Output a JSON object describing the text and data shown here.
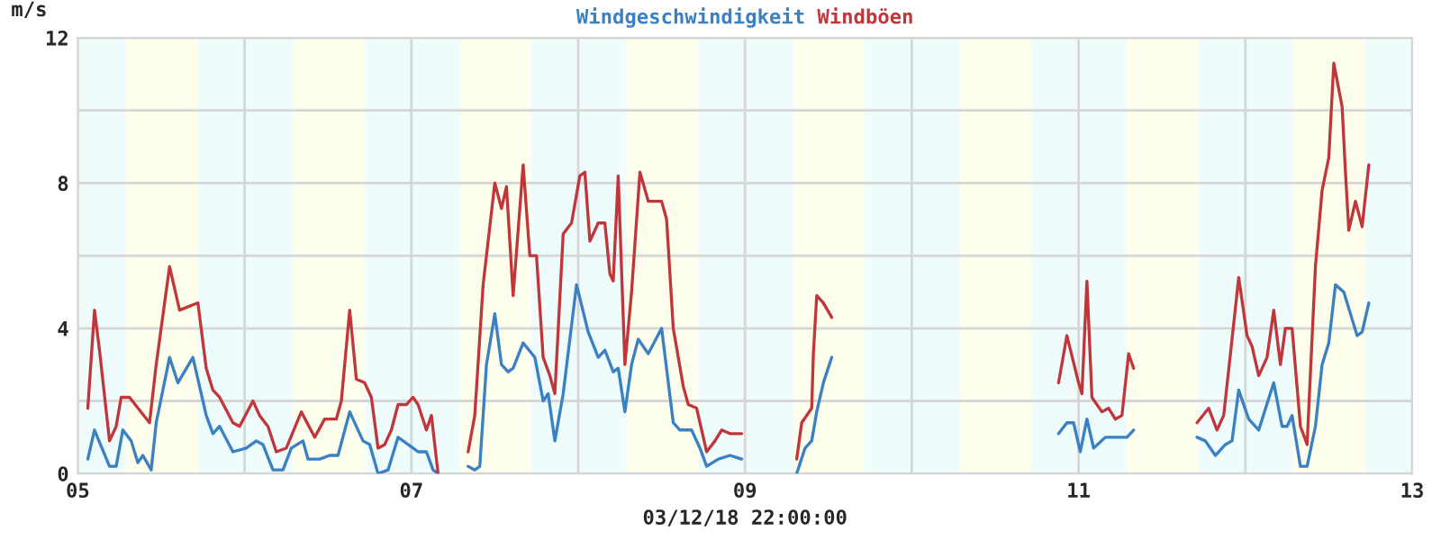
{
  "chart_data": {
    "type": "line",
    "ylabel": "m/s",
    "xlabel": "03/12/18 22:00:00",
    "legend": "top",
    "grid": true,
    "marker": "none",
    "line_style": "solid",
    "xlim": [
      5,
      13
    ],
    "ylim": [
      0,
      12
    ],
    "xticks": [
      {
        "value": 5,
        "label": "05"
      },
      {
        "value": 6,
        "label": null
      },
      {
        "value": 7,
        "label": "07"
      },
      {
        "value": 8,
        "label": null
      },
      {
        "value": 9,
        "label": "09"
      },
      {
        "value": 10,
        "label": null
      },
      {
        "value": 11,
        "label": "11"
      },
      {
        "value": 12,
        "label": null
      },
      {
        "value": 13,
        "label": "13"
      }
    ],
    "yticks": [
      0,
      {
        "value": 2,
        "label": null
      },
      4,
      {
        "value": 6,
        "label": null
      },
      8,
      {
        "value": 10,
        "label": null
      },
      12
    ],
    "bands": [
      {
        "axis": "x",
        "from": 5,
        "to": 5.29,
        "color": "#eefcfc"
      },
      {
        "axis": "x",
        "from": 5.29,
        "to": 5.72,
        "color": "#fdfeec"
      },
      {
        "axis": "x",
        "from": 5.72,
        "to": 6.29,
        "color": "#eefcfc"
      },
      {
        "axis": "x",
        "from": 6.29,
        "to": 6.72,
        "color": "#fdfeec"
      },
      {
        "axis": "x",
        "from": 6.72,
        "to": 7.29,
        "color": "#eefcfc"
      },
      {
        "axis": "x",
        "from": 7.29,
        "to": 7.72,
        "color": "#fdfeec"
      },
      {
        "axis": "x",
        "from": 7.72,
        "to": 8.29,
        "color": "#eefcfc"
      },
      {
        "axis": "x",
        "from": 8.29,
        "to": 8.72,
        "color": "#fdfeec"
      },
      {
        "axis": "x",
        "from": 8.72,
        "to": 9.29,
        "color": "#eefcfc"
      },
      {
        "axis": "x",
        "from": 9.29,
        "to": 9.72,
        "color": "#fdfeec"
      },
      {
        "axis": "x",
        "from": 9.72,
        "to": 10.29,
        "color": "#eefcfc"
      },
      {
        "axis": "x",
        "from": 10.29,
        "to": 10.72,
        "color": "#fdfeec"
      },
      {
        "axis": "x",
        "from": 10.72,
        "to": 11.29,
        "color": "#eefcfc"
      },
      {
        "axis": "x",
        "from": 11.29,
        "to": 11.72,
        "color": "#fdfeec"
      },
      {
        "axis": "x",
        "from": 11.72,
        "to": 12.29,
        "color": "#eefcfc"
      },
      {
        "axis": "x",
        "from": 12.29,
        "to": 12.72,
        "color": "#fdfeec"
      },
      {
        "axis": "x",
        "from": 12.72,
        "to": 13,
        "color": "#eefcfc"
      }
    ],
    "series": [
      {
        "name": "Windgeschwindigkeit",
        "color": "#3a80c2",
        "x": [
          5.06,
          5.1,
          5.19,
          5.23,
          5.27,
          5.32,
          5.36,
          5.39,
          5.44,
          5.47,
          5.55,
          5.6,
          5.69,
          5.77,
          5.81,
          5.85,
          5.93,
          6.01,
          6.07,
          6.11,
          6.17,
          6.23,
          6.28,
          6.35,
          6.38,
          6.45,
          6.51,
          6.56,
          6.63,
          6.71,
          6.75,
          6.8,
          6.86,
          6.92,
          7.01,
          7.04,
          7.09,
          7.13,
          7.16,
          7.25,
          7.34,
          7.38,
          7.41,
          7.45,
          7.5,
          7.54,
          7.58,
          7.61,
          7.67,
          7.74,
          7.79,
          7.82,
          7.86,
          7.91,
          7.99,
          8.06,
          8.12,
          8.16,
          8.21,
          8.24,
          8.28,
          8.32,
          8.36,
          8.42,
          8.5,
          8.57,
          8.61,
          8.68,
          8.73,
          8.77,
          8.84,
          8.91,
          8.98,
          9.15,
          9.31,
          9.36,
          9.4,
          9.43,
          9.47,
          9.52,
          10.2,
          10.88,
          10.93,
          10.97,
          11.01,
          11.05,
          11.09,
          11.16,
          11.18,
          11.29,
          11.33,
          11.5,
          11.71,
          11.76,
          11.82,
          11.88,
          11.92,
          11.96,
          12.02,
          12.08,
          12.17,
          12.22,
          12.25,
          12.28,
          12.33,
          12.37,
          12.42,
          12.46,
          12.5,
          12.54,
          12.59,
          12.67,
          12.7,
          12.74
        ],
        "values": [
          0.4,
          1.2,
          0.2,
          0.2,
          1.2,
          0.9,
          0.3,
          0.5,
          0.1,
          1.4,
          3.2,
          2.5,
          3.2,
          1.6,
          1.1,
          1.3,
          0.6,
          0.7,
          0.9,
          0.8,
          0.1,
          0.1,
          0.7,
          0.9,
          0.4,
          0.4,
          0.5,
          0.5,
          1.7,
          0.9,
          0.8,
          0,
          0.1,
          1,
          0.7,
          0.6,
          0.6,
          0.1,
          0,
          null,
          0.2,
          0.1,
          0.2,
          3,
          4.4,
          3,
          2.8,
          2.9,
          3.6,
          3.2,
          2,
          2.2,
          0.9,
          2.2,
          5.2,
          3.9,
          3.2,
          3.4,
          2.8,
          2.9,
          1.7,
          3,
          3.7,
          3.3,
          4,
          1.4,
          1.2,
          1.2,
          0.7,
          0.2,
          0.4,
          0.5,
          0.4,
          null,
          0,
          0.7,
          0.9,
          1.7,
          2.5,
          3.2,
          null,
          1.1,
          1.4,
          1.4,
          0.6,
          1.5,
          0.7,
          1,
          1,
          1,
          1.2,
          null,
          1,
          0.9,
          0.5,
          0.8,
          0.9,
          2.3,
          1.5,
          1.2,
          2.5,
          1.3,
          1.3,
          1.6,
          0.2,
          0.2,
          1.3,
          3,
          3.6,
          5.2,
          5,
          3.8,
          3.9,
          4.7
        ]
      },
      {
        "name": "Windböen",
        "color": "#c0363a",
        "x": [
          5.06,
          5.1,
          5.13,
          5.19,
          5.23,
          5.26,
          5.31,
          5.43,
          5.47,
          5.55,
          5.61,
          5.72,
          5.77,
          5.81,
          5.85,
          5.93,
          5.97,
          6.05,
          6.09,
          6.14,
          6.19,
          6.25,
          6.34,
          6.42,
          6.48,
          6.55,
          6.58,
          6.63,
          6.67,
          6.72,
          6.76,
          6.8,
          6.84,
          6.88,
          6.92,
          6.97,
          7.01,
          7.04,
          7.09,
          7.12,
          7.16,
          7.25,
          7.34,
          7.38,
          7.43,
          7.5,
          7.54,
          7.57,
          7.61,
          7.67,
          7.71,
          7.75,
          7.79,
          7.83,
          7.86,
          7.91,
          7.96,
          8.01,
          8.04,
          8.07,
          8.12,
          8.16,
          8.19,
          8.21,
          8.24,
          8.28,
          8.32,
          8.37,
          8.42,
          8.5,
          8.53,
          8.57,
          8.63,
          8.66,
          8.71,
          8.77,
          8.82,
          8.86,
          8.91,
          8.98,
          9.15,
          9.31,
          9.34,
          9.4,
          9.41,
          9.43,
          9.47,
          9.52,
          10.2,
          10.88,
          10.93,
          11,
          11.02,
          11.05,
          11.08,
          11.14,
          11.18,
          11.22,
          11.26,
          11.3,
          11.33,
          11.5,
          11.71,
          11.78,
          11.83,
          11.87,
          11.92,
          11.96,
          12.01,
          12.04,
          12.08,
          12.13,
          12.17,
          12.21,
          12.24,
          12.28,
          12.33,
          12.37,
          12.42,
          12.46,
          12.5,
          12.53,
          12.58,
          12.6,
          12.62,
          12.66,
          12.7,
          12.74
        ],
        "values": [
          1.8,
          4.5,
          3.4,
          0.9,
          1.3,
          2.1,
          2.1,
          1.4,
          3,
          5.7,
          4.5,
          4.7,
          2.9,
          2.3,
          2.1,
          1.4,
          1.3,
          2,
          1.6,
          1.3,
          0.6,
          0.7,
          1.7,
          1,
          1.5,
          1.5,
          2,
          4.5,
          2.6,
          2.5,
          2.1,
          0.7,
          0.8,
          1.2,
          1.9,
          1.9,
          2.1,
          1.9,
          1.2,
          1.6,
          0,
          null,
          0.6,
          1.6,
          5.2,
          8,
          7.3,
          7.9,
          4.9,
          8.5,
          6,
          6,
          3.2,
          2.7,
          2.2,
          6.6,
          6.9,
          8.2,
          8.3,
          6.4,
          6.9,
          6.9,
          5.5,
          5.3,
          8.2,
          3,
          5,
          8.3,
          7.5,
          7.5,
          7,
          4,
          2.4,
          1.9,
          1.8,
          0.6,
          0.9,
          1.2,
          1.1,
          1.1,
          null,
          0.4,
          1.4,
          1.8,
          3.3,
          4.9,
          4.7,
          4.3,
          null,
          2.5,
          3.8,
          2.5,
          2.2,
          5.3,
          2.1,
          1.7,
          1.8,
          1.5,
          1.6,
          3.3,
          2.9,
          null,
          1.4,
          1.8,
          1.2,
          1.6,
          3.7,
          5.4,
          3.8,
          3.5,
          2.7,
          3.2,
          4.5,
          3,
          4,
          4,
          1.3,
          0.8,
          5.7,
          7.8,
          8.7,
          11.3,
          10.1,
          8.3,
          6.7,
          7.5,
          6.8,
          8.5
        ]
      }
    ]
  }
}
